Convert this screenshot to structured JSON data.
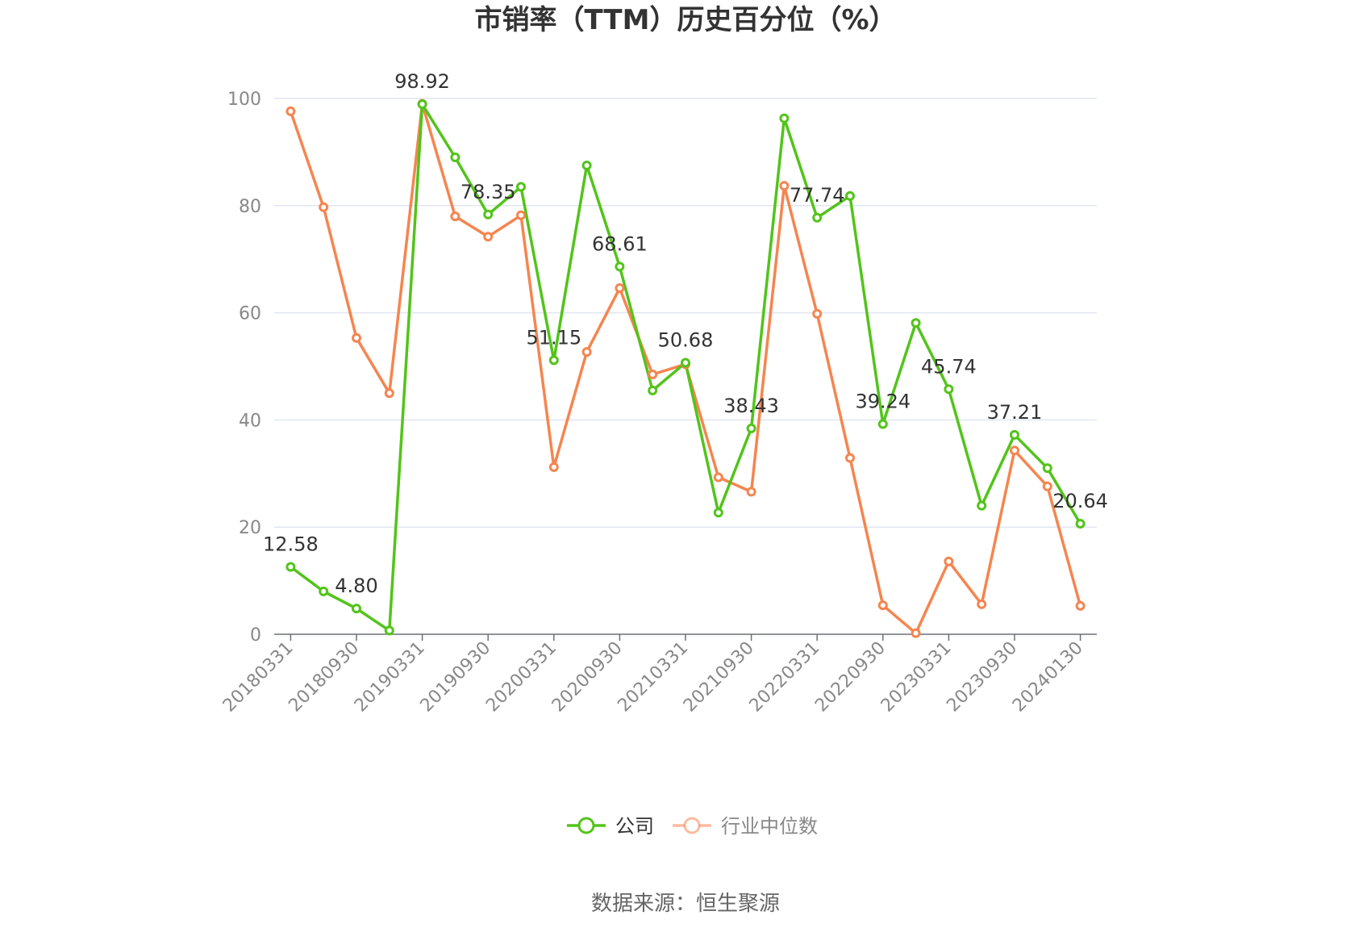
{
  "chart_data": {
    "type": "line",
    "title": "市销率（TTM）历史百分位（%）",
    "ylim": [
      0,
      100
    ],
    "yticks": [
      0,
      20,
      40,
      60,
      80,
      100
    ],
    "x": [
      "20180331",
      "20180630",
      "20180930",
      "20181231",
      "20190331",
      "20190630",
      "20190930",
      "20191231",
      "20200331",
      "20200630",
      "20200930",
      "20201231",
      "20210331",
      "20210630",
      "20210930",
      "20211231",
      "20220331",
      "20220630",
      "20220930",
      "20221231",
      "20230331",
      "20230630",
      "20230930",
      "20231231",
      "20240130"
    ],
    "xtick_labels": [
      "20180331",
      "20180930",
      "20190331",
      "20190930",
      "20200331",
      "20200930",
      "20210331",
      "20210930",
      "20220331",
      "20220930",
      "20230331",
      "20230930",
      "20240130"
    ],
    "series": [
      {
        "name": "公司",
        "color": "#52c41a",
        "values": [
          12.58,
          8.0,
          4.8,
          0.7,
          98.92,
          89.0,
          78.35,
          83.5,
          51.15,
          87.5,
          68.61,
          45.5,
          50.68,
          22.7,
          38.43,
          96.3,
          77.74,
          81.8,
          39.24,
          58.1,
          45.74,
          24.0,
          37.21,
          31.0,
          20.64
        ],
        "labels": {
          "0": "12.58",
          "2": "4.80",
          "4": "98.92",
          "6": "78.35",
          "8": "51.15",
          "10": "68.61",
          "12": "50.68",
          "14": "38.43",
          "16": "77.74",
          "18": "39.24",
          "20": "45.74",
          "22": "37.21",
          "24": "20.64"
        }
      },
      {
        "name": "行业中位数",
        "color": "#f5854f",
        "values": [
          97.6,
          79.7,
          55.3,
          45.0,
          99.0,
          78.0,
          74.2,
          78.2,
          31.2,
          52.7,
          64.6,
          48.5,
          50.4,
          29.3,
          26.6,
          83.7,
          59.8,
          32.9,
          5.4,
          0.2,
          13.6,
          5.6,
          34.3,
          27.6,
          5.3
        ]
      }
    ],
    "legend_position": "bottom-center",
    "grid": true
  },
  "source_text": "数据来源：恒生聚源"
}
